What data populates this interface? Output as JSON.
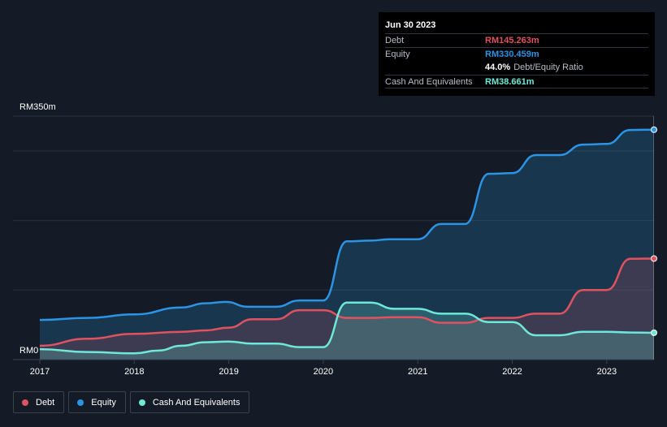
{
  "tooltip": {
    "date": "Jun 30 2023",
    "debt_label": "Debt",
    "debt_value": "RM145.263m",
    "equity_label": "Equity",
    "equity_value": "RM330.459m",
    "ratio_value": "44.0%",
    "ratio_label": "Debt/Equity Ratio",
    "cash_label": "Cash And Equivalents",
    "cash_value": "RM38.661m"
  },
  "legend": {
    "debt": "Debt",
    "equity": "Equity",
    "cash": "Cash And Equivalents"
  },
  "colors": {
    "debt": "#e05260",
    "equity": "#2b94e4",
    "cash": "#6ee8d8",
    "background": "#151b26"
  },
  "chart_data": {
    "type": "area",
    "ylim": [
      0,
      350
    ],
    "y_tick_labels": [
      "RM0",
      "RM350m"
    ],
    "x_ticks": [
      2017,
      2018,
      2019,
      2020,
      2021,
      2022,
      2023
    ],
    "x_tick_labels": [
      "2017",
      "2018",
      "2019",
      "2020",
      "2021",
      "2022",
      "2023"
    ],
    "xlim": [
      2017.0,
      2023.5
    ],
    "series": [
      {
        "name": "Equity",
        "key": "equity",
        "points": [
          [
            2017.0,
            57
          ],
          [
            2017.5,
            60
          ],
          [
            2018.0,
            65
          ],
          [
            2018.5,
            75
          ],
          [
            2018.75,
            81
          ],
          [
            2018.97,
            83
          ],
          [
            2019.2,
            76
          ],
          [
            2019.5,
            76
          ],
          [
            2019.75,
            85
          ],
          [
            2020.0,
            85
          ],
          [
            2020.25,
            170
          ],
          [
            2020.5,
            171
          ],
          [
            2020.7,
            173
          ],
          [
            2021.0,
            173
          ],
          [
            2021.25,
            195
          ],
          [
            2021.5,
            195
          ],
          [
            2021.75,
            267
          ],
          [
            2022.0,
            268
          ],
          [
            2022.25,
            294
          ],
          [
            2022.5,
            294
          ],
          [
            2022.75,
            309
          ],
          [
            2023.0,
            310
          ],
          [
            2023.25,
            330
          ],
          [
            2023.5,
            330.459
          ]
        ]
      },
      {
        "name": "Debt",
        "key": "debt",
        "points": [
          [
            2017.0,
            20
          ],
          [
            2017.5,
            30
          ],
          [
            2018.0,
            37
          ],
          [
            2018.5,
            40
          ],
          [
            2018.75,
            42
          ],
          [
            2019.0,
            46
          ],
          [
            2019.25,
            58
          ],
          [
            2019.5,
            58
          ],
          [
            2019.75,
            71
          ],
          [
            2020.0,
            71
          ],
          [
            2020.25,
            60
          ],
          [
            2020.5,
            60
          ],
          [
            2020.75,
            61
          ],
          [
            2021.0,
            61
          ],
          [
            2021.25,
            53
          ],
          [
            2021.5,
            53
          ],
          [
            2021.75,
            60
          ],
          [
            2022.0,
            60
          ],
          [
            2022.25,
            66
          ],
          [
            2022.5,
            66
          ],
          [
            2022.75,
            100
          ],
          [
            2023.0,
            100
          ],
          [
            2023.25,
            145
          ],
          [
            2023.5,
            145.263
          ]
        ]
      },
      {
        "name": "Cash And Equivalents",
        "key": "cash",
        "points": [
          [
            2017.0,
            15
          ],
          [
            2017.5,
            11
          ],
          [
            2018.0,
            9
          ],
          [
            2018.25,
            13
          ],
          [
            2018.5,
            20
          ],
          [
            2018.75,
            25
          ],
          [
            2019.0,
            26
          ],
          [
            2019.25,
            23
          ],
          [
            2019.5,
            23
          ],
          [
            2019.75,
            18
          ],
          [
            2020.0,
            18
          ],
          [
            2020.25,
            82
          ],
          [
            2020.5,
            82
          ],
          [
            2020.75,
            73
          ],
          [
            2021.0,
            73
          ],
          [
            2021.25,
            66
          ],
          [
            2021.5,
            66
          ],
          [
            2021.75,
            54
          ],
          [
            2022.0,
            54
          ],
          [
            2022.25,
            35
          ],
          [
            2022.5,
            35
          ],
          [
            2022.75,
            40
          ],
          [
            2023.0,
            40
          ],
          [
            2023.25,
            39
          ],
          [
            2023.5,
            38.661
          ]
        ]
      }
    ],
    "legend_position": "bottom-left",
    "grid": true
  }
}
